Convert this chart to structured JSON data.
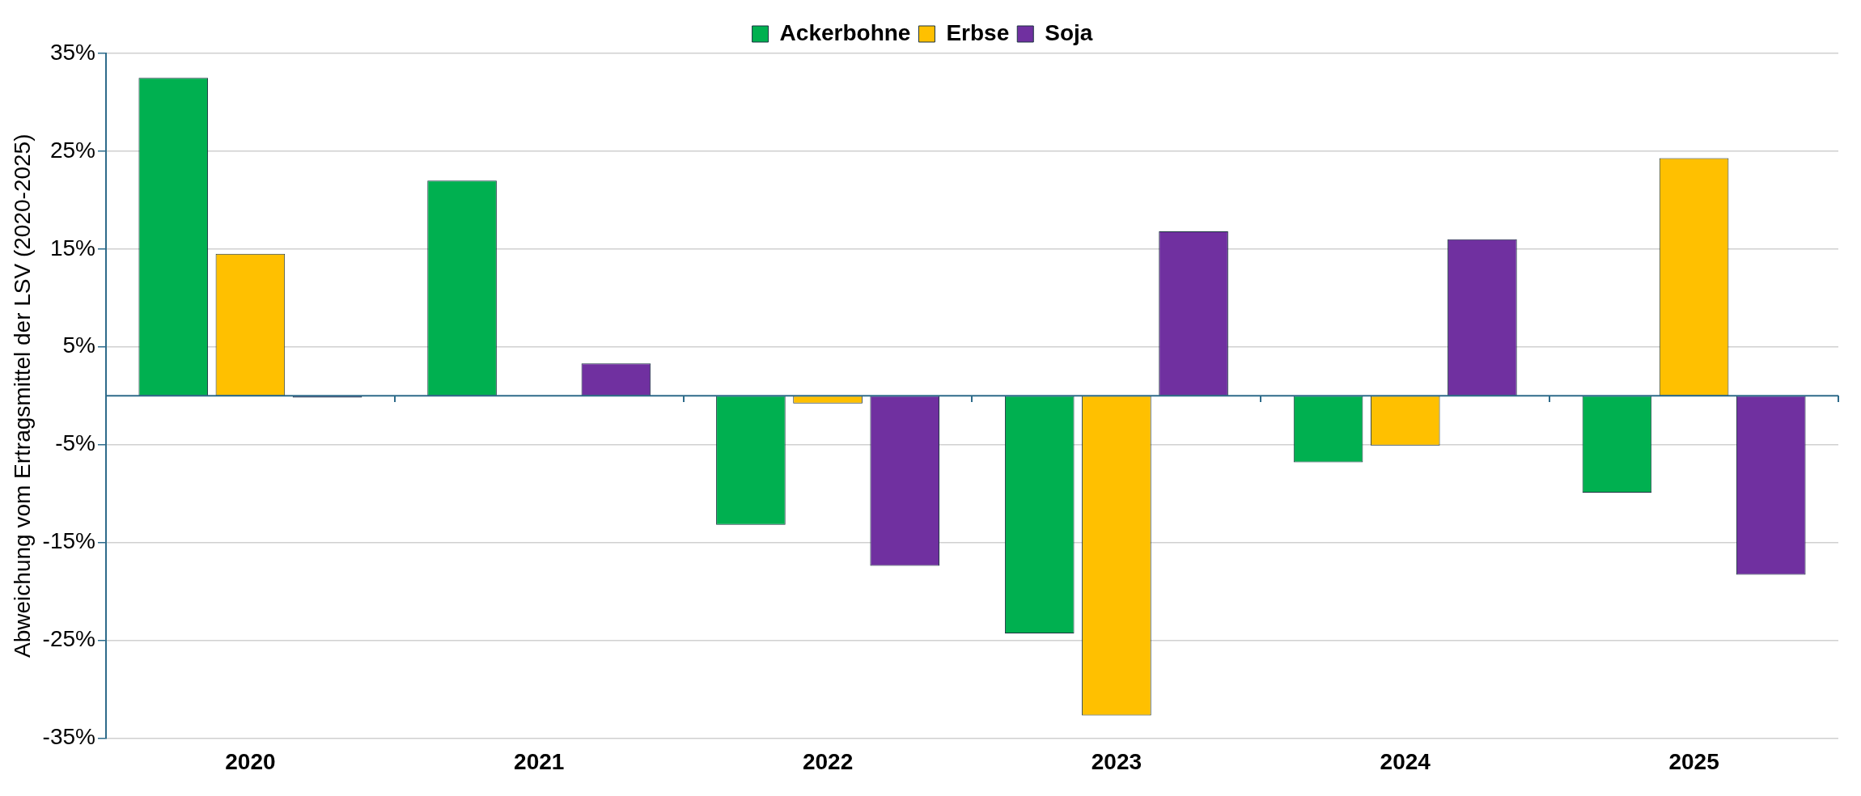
{
  "chart_data": {
    "type": "bar",
    "ylabel": "Abweichung vom Ertragsmittel der LSV (2020-2025)",
    "categories": [
      "2020",
      "2021",
      "2022",
      "2023",
      "2024",
      "2025"
    ],
    "series": [
      {
        "name": "Ackerbohne",
        "color": "#00b050",
        "values": [
          32.5,
          22.0,
          -13.2,
          -24.3,
          -6.8,
          -9.9
        ]
      },
      {
        "name": "Erbse",
        "color": "#ffc000",
        "values": [
          14.5,
          0,
          -0.8,
          -32.7,
          -5.1,
          24.3
        ]
      },
      {
        "name": "Soja",
        "color": "#7030a0",
        "values": [
          -0.2,
          3.3,
          -17.4,
          16.8,
          16.0,
          -18.3
        ]
      }
    ],
    "ylim": [
      -35,
      35
    ],
    "yticks": [
      {
        "value": 35,
        "label": "35%"
      },
      {
        "value": 25,
        "label": "25%"
      },
      {
        "value": 15,
        "label": "15%"
      },
      {
        "value": 5,
        "label": "5%"
      },
      {
        "value": -5,
        "label": "-5%"
      },
      {
        "value": -15,
        "label": "-15%"
      },
      {
        "value": -25,
        "label": "-25%"
      },
      {
        "value": -35,
        "label": "-35%"
      }
    ],
    "ref_lines": [
      {
        "axis": "y",
        "value": 0,
        "color": "#2e6b8a"
      }
    ],
    "grid": "y",
    "legend": "top"
  }
}
